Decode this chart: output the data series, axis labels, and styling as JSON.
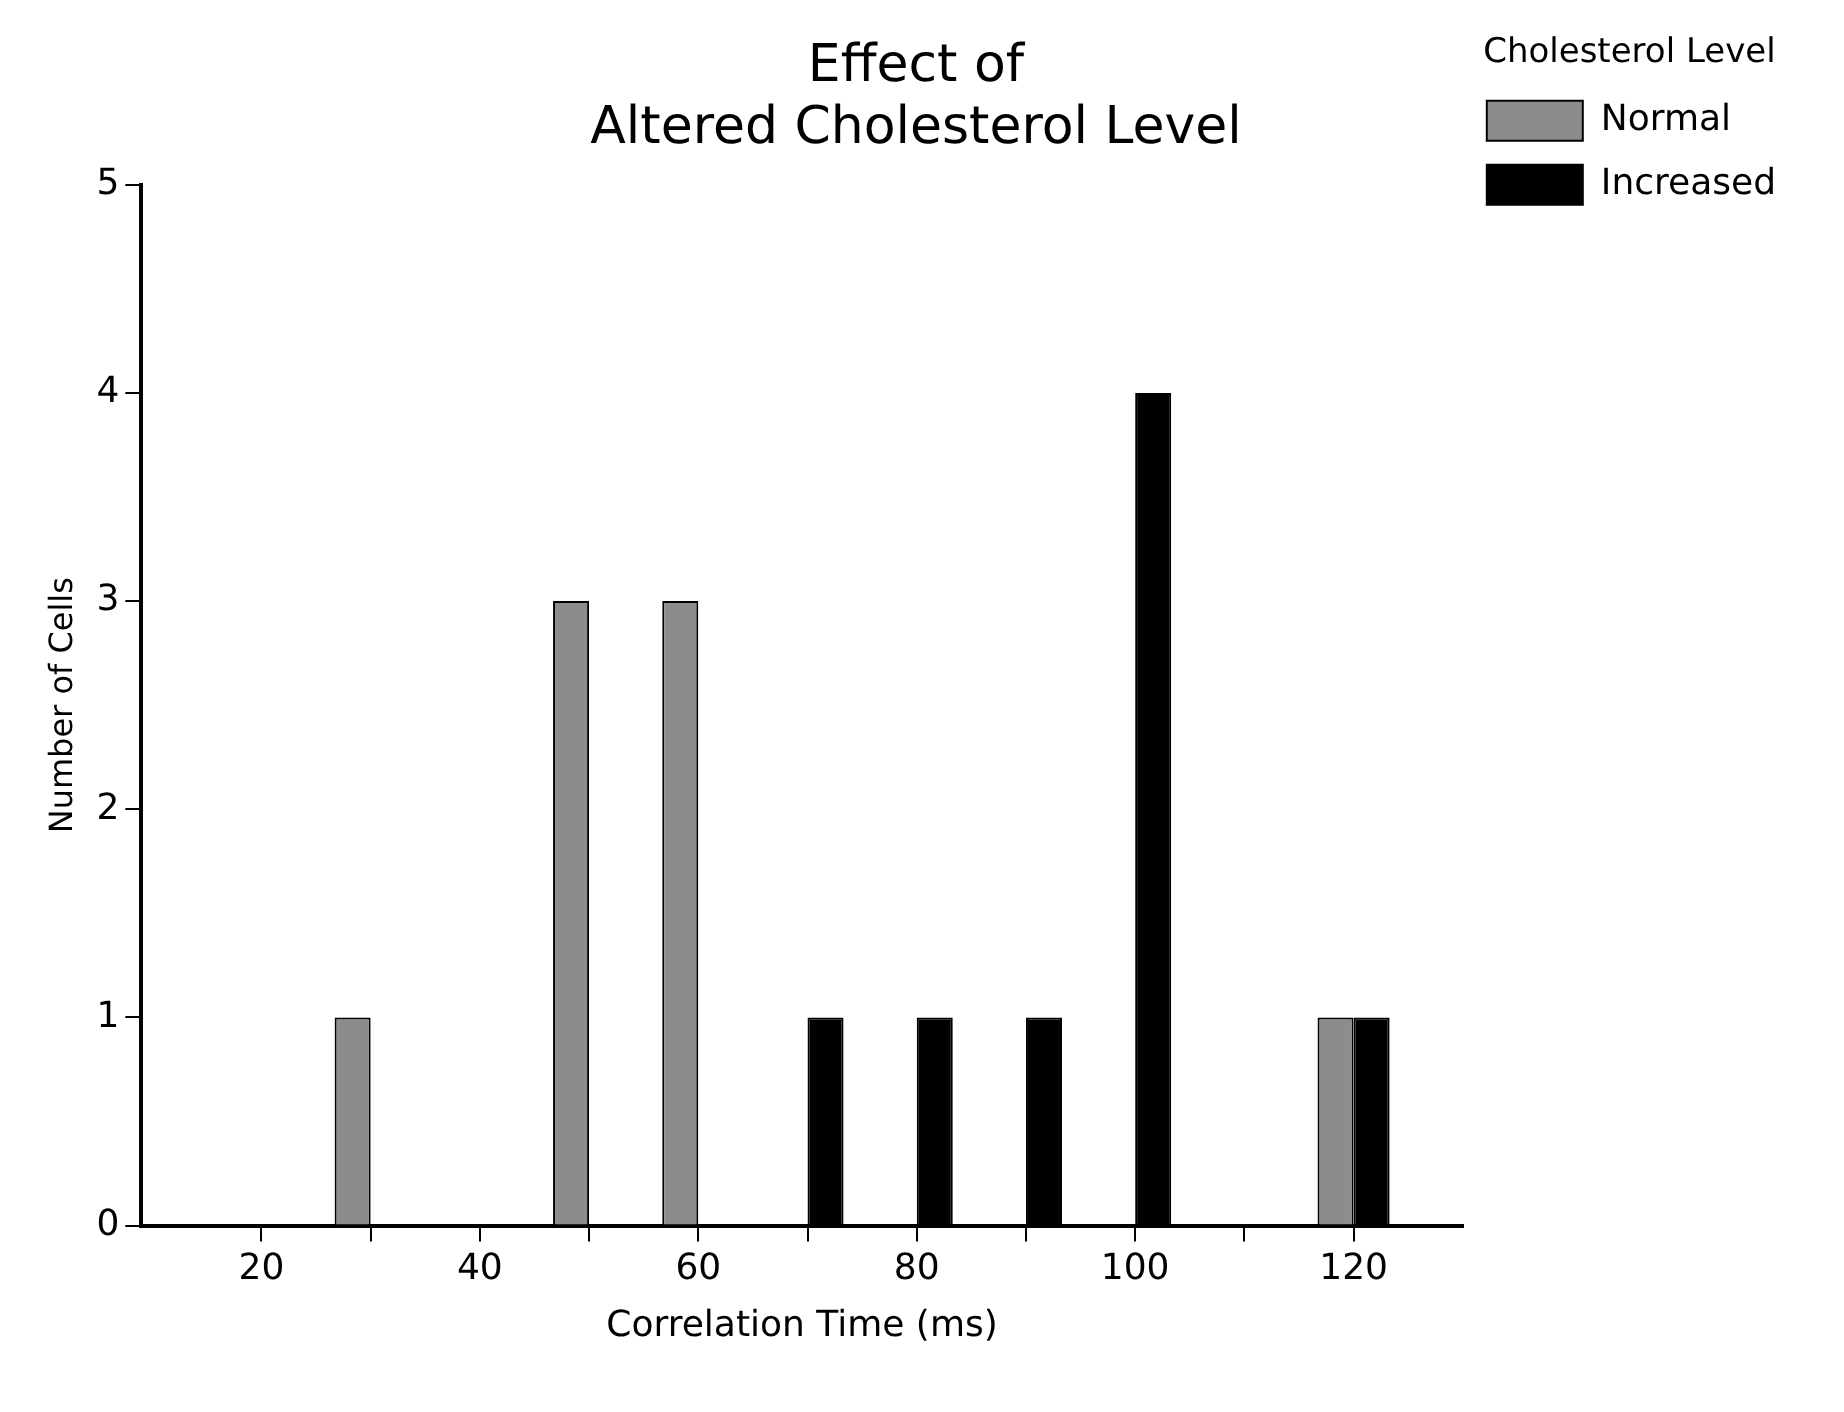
{
  "chart_data": {
    "type": "bar",
    "title": [
      "Effect of",
      "Altered Cholesterol Level"
    ],
    "xlabel": "Correlation Time (ms)",
    "ylabel": "Number of Cells",
    "legend_title": "Cholesterol Level",
    "x": [
      30,
      50,
      60,
      70,
      80,
      90,
      100,
      120
    ],
    "series": [
      {
        "name": "Normal",
        "color": "#8c8c8c",
        "values": [
          1,
          3,
          3,
          null,
          null,
          null,
          null,
          1
        ]
      },
      {
        "name": "Increased",
        "color": "#000000",
        "values": [
          null,
          null,
          null,
          1,
          1,
          1,
          4,
          1
        ]
      }
    ],
    "xlim": [
      9,
      130
    ],
    "xticks": [
      20,
      {
        "value": 30,
        "label": null
      },
      40,
      {
        "value": 50,
        "label": null
      },
      60,
      {
        "value": 70,
        "label": null
      },
      80,
      {
        "value": 90,
        "label": null
      },
      100,
      {
        "value": 110,
        "label": null
      },
      120
    ],
    "ylim": [
      0,
      5
    ],
    "yticks": [
      0,
      1,
      2,
      3,
      4,
      5
    ],
    "grid": false,
    "legend": "top right"
  }
}
